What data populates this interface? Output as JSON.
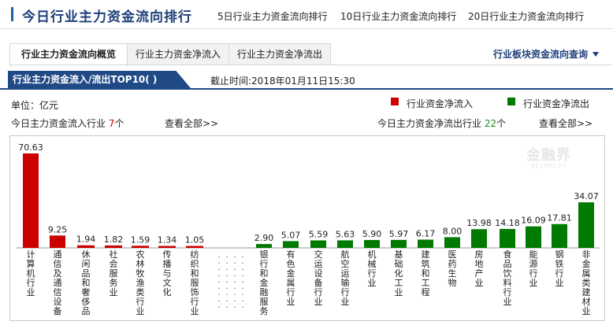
{
  "header": {
    "title": "今日行业主力资金流向排行",
    "links": [
      "5日行业主力资金流向排行",
      "10日行业主力资金流向排行",
      "20日行业主力资金流向排行"
    ]
  },
  "tabs": [
    "行业主力资金流向概览",
    "行业主力资金净流入",
    "行业主力资金净流出"
  ],
  "query_label": "行业板块资金流向查询",
  "section": {
    "banner": "行业主力资金流入/流出TOP10( )",
    "time": "截止时间:2018年01月11日15:30"
  },
  "unit": "单位：亿元",
  "legend": {
    "inflow": "行业资金净流入",
    "outflow": "行业资金净流出"
  },
  "inflow_summary": {
    "prefix": "今日主力资金流入行业",
    "count": "7",
    "suffix": "个",
    "view_all": "查看全部>>"
  },
  "outflow_summary": {
    "prefix": "今日主力资金净流出行业",
    "count": "22",
    "suffix": "个",
    "view_all": "查看全部>>"
  },
  "watermark": {
    "main": "金融界",
    "sub": "jrj.com.cn"
  },
  "colors": {
    "inflow": "#cc0000",
    "outflow": "#007a00",
    "accent": "#1f4a86"
  },
  "chart_data": {
    "type": "bar",
    "series": [
      {
        "name": "行业资金净流入",
        "categories": [
          "计算机行业",
          "通信及通信设备",
          "休闲品和奢侈品",
          "社会服务业",
          "农林牧渔类行业",
          "传播与文化",
          "纺织和服饰行业"
        ],
        "values": [
          70.63,
          9.25,
          1.94,
          1.82,
          1.59,
          1.34,
          1.05
        ]
      },
      {
        "name": "行业资金净流出",
        "categories": [
          "银行和金融服务",
          "有色金属行业",
          "交运设备行业",
          "航空运输行业",
          "机械行业",
          "基础化工业",
          "建筑和工程",
          "医药生物",
          "房地产业",
          "食品饮料行业",
          "能源行业",
          "钢铁行业",
          "非金属类建材业"
        ],
        "values": [
          2.9,
          5.07,
          5.59,
          5.63,
          5.9,
          5.97,
          6.17,
          8.0,
          13.98,
          14.18,
          16.09,
          17.81,
          34.07
        ]
      }
    ],
    "separator": ".........",
    "grid": false
  }
}
